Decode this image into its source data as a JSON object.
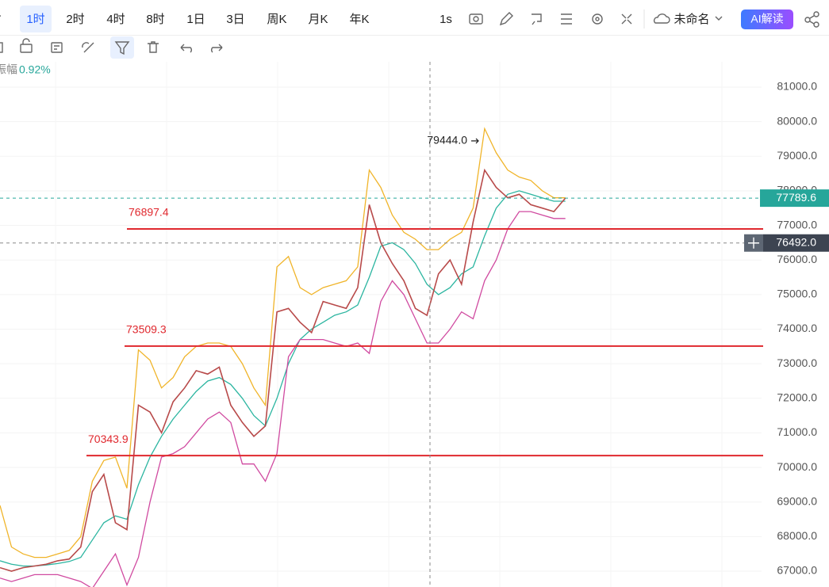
{
  "toolbar": {
    "intervals": [
      "时",
      "1时",
      "2时",
      "4时",
      "8时",
      "1日",
      "3日",
      "周K",
      "月K",
      "年K"
    ],
    "active": 1,
    "seconds": "1s",
    "layout_name": "未命名",
    "ai_button": "AI解读"
  },
  "info": {
    "label": "振幅",
    "value": "0.92%"
  },
  "chart_data": {
    "type": "line",
    "x": [
      0,
      1,
      2,
      3,
      4,
      5,
      6,
      7,
      8,
      9,
      10,
      11,
      12,
      13,
      14,
      15,
      16,
      17,
      18,
      19,
      20,
      21,
      22,
      23,
      24,
      25,
      26,
      27,
      28,
      29,
      30,
      31,
      32,
      33,
      34,
      35,
      36,
      37,
      38,
      39,
      40,
      41,
      42,
      43,
      44,
      45,
      46,
      47,
      48,
      49
    ],
    "xlim": [
      0,
      66
    ],
    "ylim": [
      66542,
      81733
    ],
    "yticks": [
      {
        "value": 67000,
        "label": "67000.0"
      },
      {
        "value": 68000,
        "label": "68000.0"
      },
      {
        "value": 69000,
        "label": "69000.0"
      },
      {
        "value": 70000,
        "label": "70000.0"
      },
      {
        "value": 71000,
        "label": "71000.0"
      },
      {
        "value": 72000,
        "label": "72000.0"
      },
      {
        "value": 73000,
        "label": "73000.0"
      },
      {
        "value": 74000,
        "label": "74000.0"
      },
      {
        "value": 75000,
        "label": "75000.0"
      },
      {
        "value": 76000,
        "label": "76000.0"
      },
      {
        "value": 77000,
        "label": "77000.0"
      },
      {
        "value": 78000,
        "label": "78000.0"
      },
      {
        "value": 79000,
        "label": "79000.0"
      },
      {
        "value": 80000,
        "label": "80000.0"
      },
      {
        "value": 81000,
        "label": "81000.0"
      }
    ],
    "grid": true,
    "series": [
      {
        "color": "#f0b429",
        "values": [
          68900,
          67700,
          67500,
          67400,
          67400,
          67500,
          67600,
          68000,
          69600,
          70200,
          70300,
          69400,
          73400,
          73100,
          72300,
          72600,
          73200,
          73500,
          73600,
          73600,
          73500,
          73000,
          72300,
          71800,
          75800,
          76100,
          75200,
          75000,
          75200,
          75300,
          75400,
          75800,
          78600,
          78100,
          77300,
          76800,
          76600,
          76300,
          76300,
          76600,
          76800,
          77500,
          79800,
          79100,
          78600,
          78400,
          78300,
          78000,
          77800,
          77800
        ]
      },
      {
        "color": "#2bb5a0",
        "values": [
          67300,
          67200,
          67150,
          67150,
          67180,
          67220,
          67280,
          67400,
          67900,
          68400,
          68600,
          68500,
          69500,
          70300,
          70900,
          71400,
          71800,
          72200,
          72500,
          72600,
          72400,
          72000,
          71500,
          71200,
          72000,
          73000,
          73700,
          74000,
          74200,
          74400,
          74500,
          74700,
          75500,
          76400,
          76500,
          76300,
          75900,
          75300,
          75000,
          75200,
          75600,
          75800,
          76700,
          77500,
          77900,
          78000,
          77900,
          77800,
          77700,
          77700
        ]
      },
      {
        "color": "#d04aa0",
        "values": [
          66800,
          66700,
          66800,
          66900,
          66900,
          66900,
          66800,
          66700,
          66500,
          67000,
          67500,
          66600,
          67400,
          69000,
          70300,
          70400,
          70600,
          71000,
          71400,
          71600,
          71300,
          70100,
          70100,
          69600,
          70400,
          73200,
          73700,
          73700,
          73700,
          73600,
          73500,
          73600,
          73300,
          74800,
          75400,
          75000,
          74300,
          73600,
          73600,
          74000,
          74500,
          74300,
          75400,
          76000,
          76900,
          77400,
          77400,
          77300,
          77200,
          77200
        ]
      },
      {
        "color": "#b84a4a",
        "values": [
          67100,
          67000,
          67100,
          67150,
          67200,
          67300,
          67350,
          67700,
          69300,
          69800,
          68400,
          68200,
          71800,
          71600,
          71000,
          71900,
          72300,
          72800,
          72700,
          72900,
          71800,
          71300,
          70900,
          71200,
          74500,
          74600,
          74200,
          73900,
          74800,
          74700,
          74600,
          75200,
          77600,
          76500,
          75900,
          75400,
          74600,
          74400,
          75600,
          76000,
          75300,
          77100,
          78600,
          78100,
          77800,
          77900,
          77600,
          77500,
          77400,
          77790
        ]
      }
    ],
    "levels": [
      76897.4,
      73509.3,
      70343.9
    ],
    "level_color": "#e0282e",
    "last_price": 77789.6,
    "crosshair": {
      "value": 76492,
      "label": "76492.0"
    },
    "peak": {
      "value": 79444,
      "label": "79444.0"
    }
  }
}
